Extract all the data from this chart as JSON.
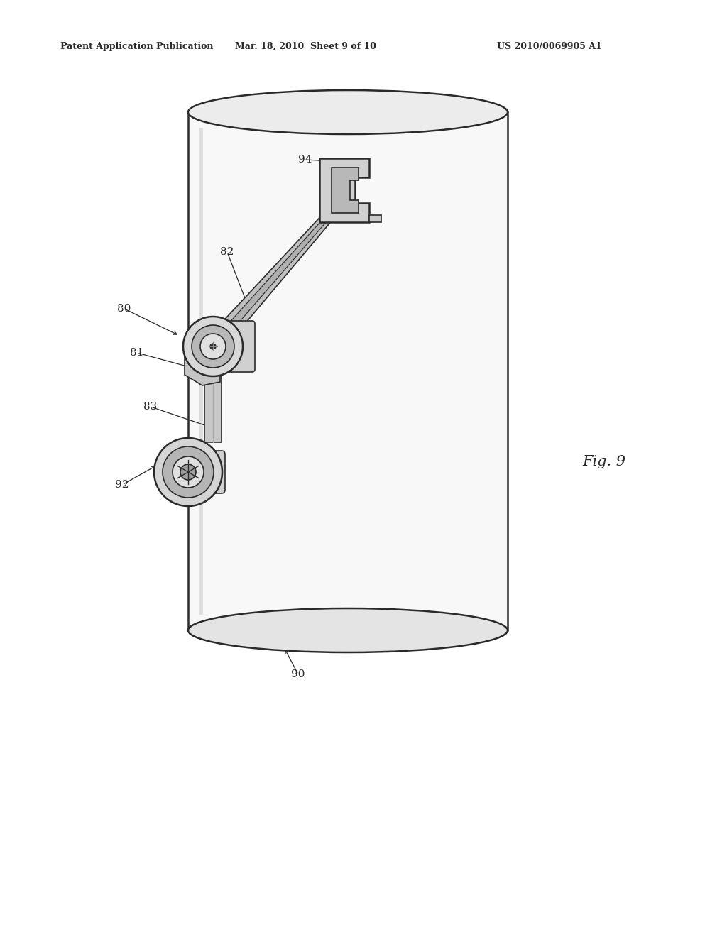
{
  "title_left": "Patent Application Publication",
  "title_mid": "Mar. 18, 2010  Sheet 9 of 10",
  "title_right": "US 2010/0069905 A1",
  "fig_label": "Fig. 9",
  "bg_color": "#ffffff",
  "line_color": "#2a2a2a",
  "fill_light": "#f0f0f0",
  "fill_mid": "#d0d0d0",
  "fill_dark": "#a8a8a8"
}
